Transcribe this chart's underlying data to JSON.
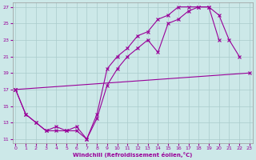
{
  "bg_color": "#cce8e8",
  "grid_color": "#aacccc",
  "line_color": "#990099",
  "xlim": [
    -0.3,
    23.3
  ],
  "ylim": [
    10.5,
    27.5
  ],
  "xticks": [
    0,
    1,
    2,
    3,
    4,
    5,
    6,
    7,
    8,
    9,
    10,
    11,
    12,
    13,
    14,
    15,
    16,
    17,
    18,
    19,
    20,
    21,
    22,
    23
  ],
  "yticks": [
    11,
    13,
    15,
    17,
    19,
    21,
    23,
    25,
    27
  ],
  "xlabel": "Windchill (Refroidissement éolien,°C)",
  "series": [
    {
      "x": [
        0,
        1,
        2,
        3,
        4,
        5,
        6,
        7,
        8,
        9,
        10,
        11,
        12,
        13,
        14,
        15,
        16,
        17,
        18,
        19,
        20
      ],
      "y": [
        17,
        14,
        13,
        12,
        12.5,
        12,
        12.5,
        11,
        14,
        19.5,
        21,
        22,
        23.5,
        24,
        25.5,
        26,
        27,
        27,
        27,
        27,
        23
      ]
    },
    {
      "x": [
        0,
        23
      ],
      "y": [
        17,
        19
      ]
    },
    {
      "x": [
        0,
        1,
        2,
        3,
        4,
        5,
        6,
        7,
        8,
        9,
        10,
        11,
        12,
        13,
        14,
        15,
        16,
        17,
        18,
        19,
        20,
        21,
        22
      ],
      "y": [
        17,
        14,
        13,
        12,
        12,
        12,
        12,
        11,
        13.5,
        17.5,
        19.5,
        21,
        22,
        23,
        21.5,
        25,
        25.5,
        26.5,
        27,
        27,
        26,
        23,
        21
      ]
    }
  ]
}
